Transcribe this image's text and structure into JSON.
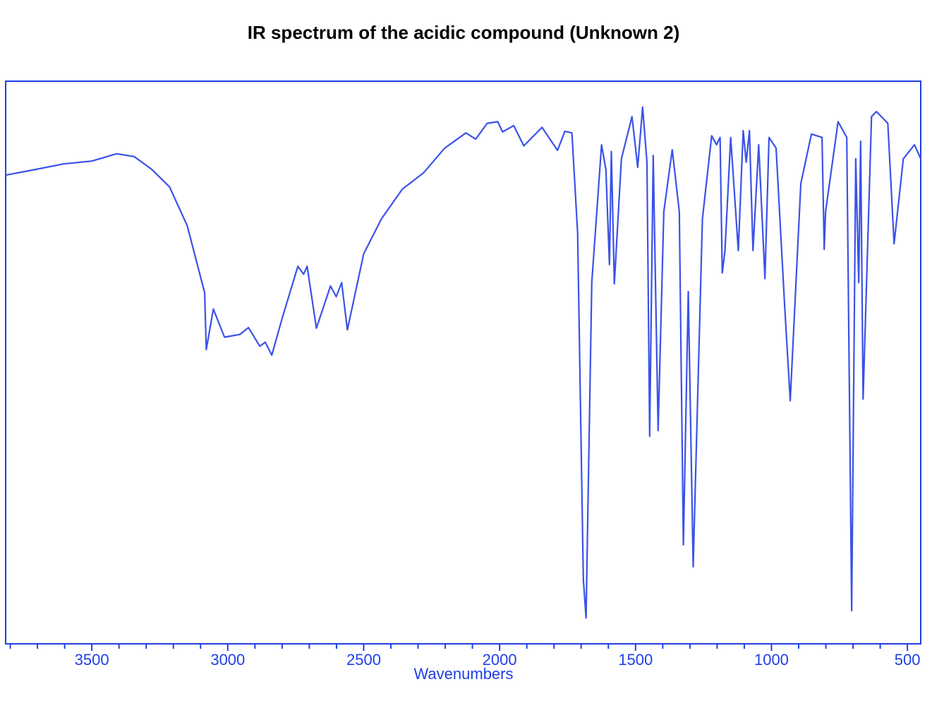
{
  "chart_data": {
    "type": "line",
    "title": "IR spectrum of the acidic compound (Unknown 2)",
    "x_label": "Wavenumbers",
    "x": [
      3817,
      3708,
      3604,
      3500,
      3409,
      3344,
      3279,
      3214,
      3149,
      3085,
      3079,
      3053,
      3012,
      2955,
      2924,
      2882,
      2862,
      2838,
      2799,
      2742,
      2721,
      2708,
      2674,
      2622,
      2601,
      2581,
      2560,
      2500,
      2435,
      2358,
      2280,
      2202,
      2124,
      2088,
      2046,
      2007,
      1989,
      1948,
      1911,
      1844,
      1787,
      1760,
      1734,
      1713,
      1692,
      1682,
      1661,
      1625,
      1609,
      1596,
      1589,
      1578,
      1552,
      1513,
      1492,
      1474,
      1458,
      1448,
      1435,
      1417,
      1396,
      1365,
      1339,
      1324,
      1306,
      1288,
      1254,
      1220,
      1202,
      1189,
      1181,
      1171,
      1150,
      1122,
      1104,
      1093,
      1081,
      1068,
      1047,
      1024,
      1009,
      983,
      952,
      931,
      892,
      853,
      814,
      806,
      801,
      755,
      723,
      705,
      690,
      679,
      672,
      663,
      632,
      614,
      572,
      549,
      515,
      474,
      451
    ],
    "values": [
      83.3,
      84.3,
      85.3,
      85.8,
      87.1,
      86.6,
      84.3,
      81.2,
      74.3,
      62.4,
      52.3,
      59.5,
      54.5,
      55.0,
      56.2,
      52.9,
      53.6,
      51.3,
      58.0,
      67.1,
      65.7,
      67.1,
      56.1,
      63.6,
      61.7,
      64.2,
      55.8,
      69.3,
      75.5,
      80.8,
      83.7,
      88.1,
      90.8,
      89.7,
      92.5,
      92.8,
      91.0,
      92.1,
      88.5,
      91.8,
      87.7,
      91.1,
      90.8,
      73.0,
      11.5,
      4.6,
      64.2,
      88.7,
      84.3,
      67.4,
      87.5,
      64.0,
      86.2,
      93.7,
      84.7,
      95.4,
      85.6,
      36.9,
      86.8,
      37.9,
      76.8,
      87.8,
      76.8,
      17.6,
      62.6,
      13.7,
      75.5,
      90.3,
      88.7,
      90.0,
      65.9,
      69.9,
      90.0,
      69.9,
      91.2,
      85.6,
      91.2,
      69.9,
      88.7,
      64.9,
      90.0,
      88.1,
      60.5,
      43.2,
      81.8,
      90.6,
      90.0,
      70.1,
      76.8,
      92.8,
      90.0,
      5.9,
      86.2,
      64.2,
      89.3,
      43.5,
      93.7,
      94.6,
      92.5,
      71.1,
      86.2,
      88.7,
      86.2
    ],
    "color": "#3a52e8",
    "xlim": [
      3817,
      451
    ],
    "ylim": [
      0,
      100
    ],
    "xticks": [
      3500,
      3000,
      2500,
      2000,
      1500,
      1000,
      500
    ],
    "xminorticks": [
      3800,
      3700,
      3600,
      3400,
      3300,
      3200,
      3100,
      2900,
      2800,
      2700,
      2600,
      2400,
      2300,
      2200,
      2100,
      1900,
      1800,
      1700,
      1600,
      1400,
      1300,
      1200,
      1100,
      900,
      800,
      700,
      600
    ]
  }
}
